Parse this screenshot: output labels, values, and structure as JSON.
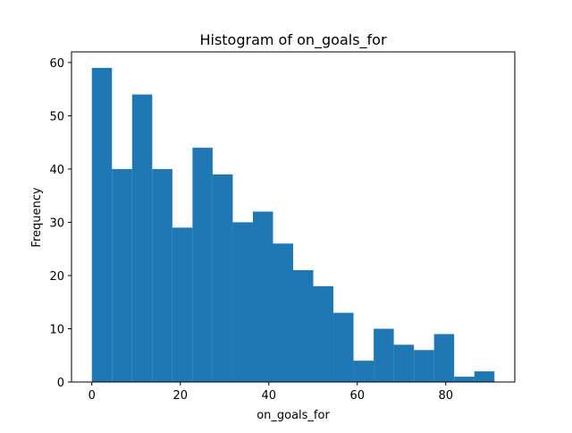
{
  "chart_data": {
    "type": "histogram",
    "title": "Histogram of on_goals_for",
    "xlabel": "on_goals_for",
    "ylabel": "Frequency",
    "xlim": [
      -4.6,
      95.6
    ],
    "ylim": [
      0,
      62
    ],
    "xticks": [
      0,
      20,
      40,
      60,
      80
    ],
    "yticks": [
      0,
      10,
      20,
      30,
      40,
      50,
      60
    ],
    "bin_edges": [
      0,
      4.55,
      9.1,
      13.65,
      18.2,
      22.75,
      27.3,
      31.85,
      36.4,
      40.95,
      45.5,
      50.05,
      54.6,
      59.15,
      63.7,
      68.25,
      72.8,
      77.35,
      81.9,
      86.45,
      91.0
    ],
    "values": [
      59,
      40,
      54,
      40,
      29,
      44,
      39,
      30,
      32,
      26,
      21,
      18,
      13,
      4,
      10,
      7,
      6,
      9,
      1,
      2
    ],
    "bar_color": "#1f77b4",
    "grid": false,
    "legend": "none"
  }
}
